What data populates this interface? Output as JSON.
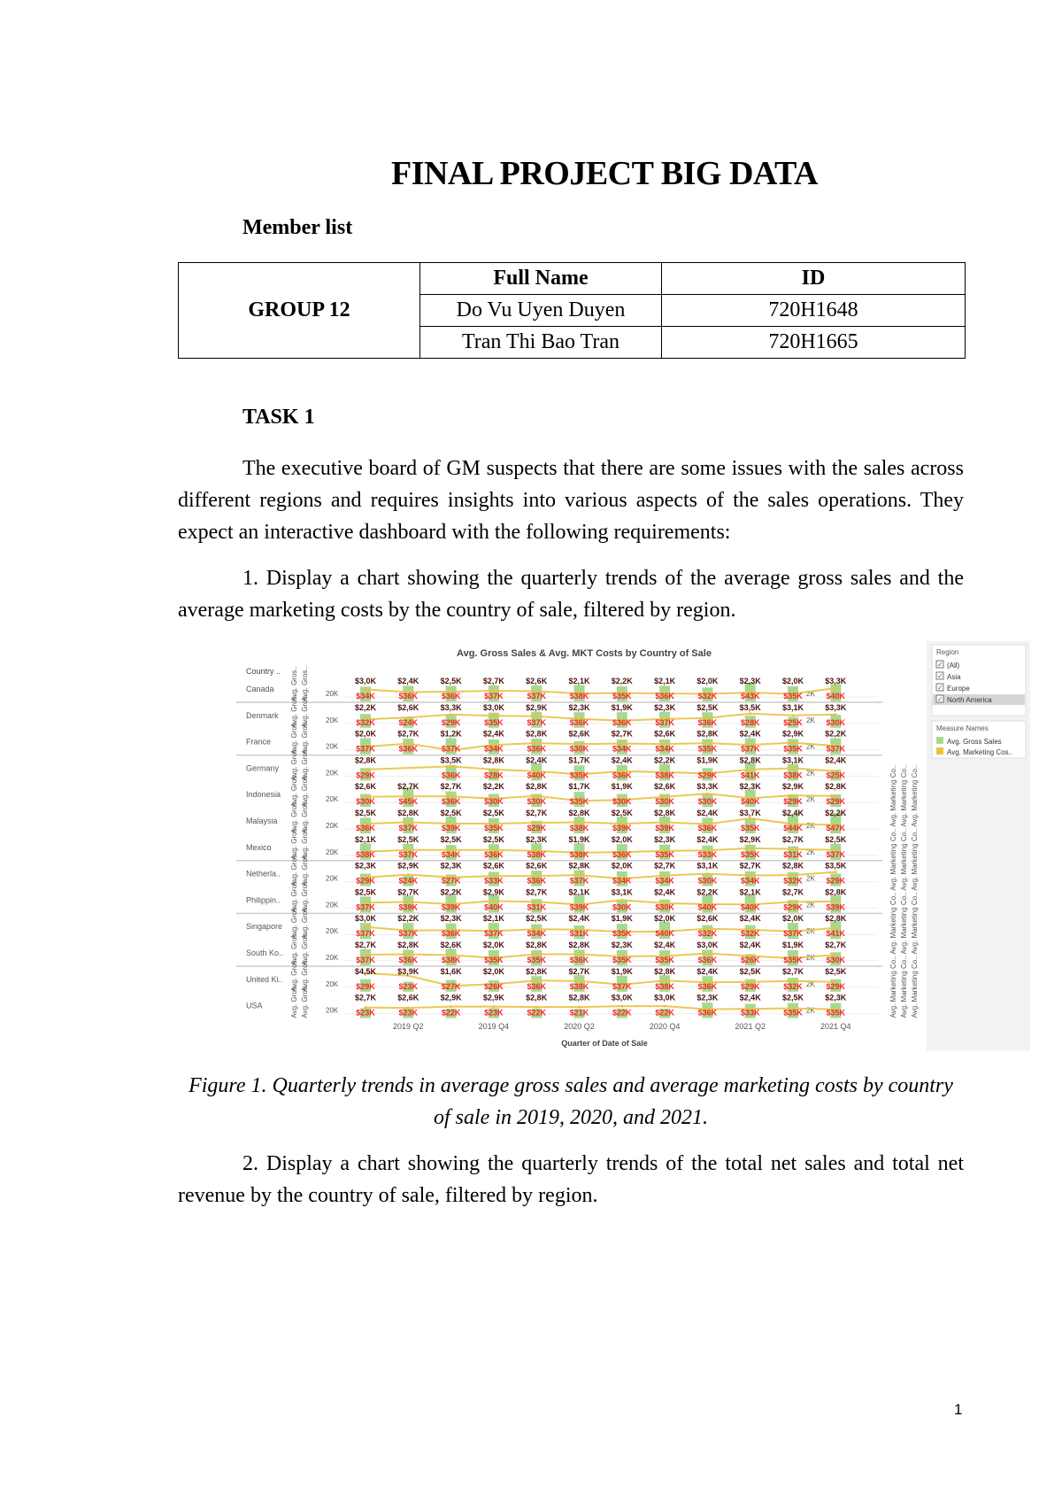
{
  "doc": {
    "title": "FINAL PROJECT BIG DATA",
    "member_list": "Member list",
    "table": {
      "group": "GROUP 12",
      "headers": [
        "Full Name",
        "ID"
      ],
      "rows": [
        [
          "Do Vu Uyen Duyen",
          "720H1648"
        ],
        [
          "Tran Thi Bao Tran",
          "720H1665"
        ]
      ]
    },
    "task": "TASK 1",
    "para1": "The executive board of GM suspects that there are some issues with the sales across different regions and requires insights into various aspects of the sales operations. They expect an interactive dashboard with the following requirements:",
    "para2": "1. Display a chart showing the quarterly trends of the average gross sales and the average marketing costs by the country of sale, filtered by region.",
    "caption": "Figure 1. Quarterly trends in average gross sales and average marketing costs by country of sale in 2019, 2020, and 2021.",
    "para3": "2. Display a chart showing the quarterly trends of the total net sales and total net revenue by the country of sale, filtered by region.",
    "page_number": "1"
  },
  "chart_data": {
    "type": "bar+line",
    "title": "Avg. Gross Sales & Avg. MKT Costs by Country of Sale",
    "row_header": "Country ..",
    "left_axis_title": "Avg. Gros..",
    "left_axis_tick": "20K",
    "right_axis_title": "Avg. Marketing Co..",
    "right_axis_tick": "2K",
    "xlabel": "Quarter of Date of Sale",
    "quarters": [
      "2019 Q1",
      "2019 Q2",
      "2019 Q3",
      "2019 Q4",
      "2020 Q1",
      "2020 Q2",
      "2020 Q3",
      "2020 Q4",
      "2021 Q1",
      "2021 Q2",
      "2021 Q3",
      "2021 Q4"
    ],
    "x_tick_labels": [
      "2019 Q2",
      "2019 Q4",
      "2020 Q2",
      "2020 Q4",
      "2021 Q2",
      "2021 Q4"
    ],
    "colors": {
      "gross": "#a6d98e",
      "marketing": "#e9c23f",
      "gross_label": "#ff1f1f",
      "marketing_label": "#4a1010"
    },
    "countries": [
      {
        "name": "Canada",
        "mkt_k": [
          3.0,
          2.4,
          2.5,
          2.7,
          2.6,
          2.1,
          2.2,
          2.1,
          2.0,
          2.3,
          2.0,
          3.3
        ],
        "gross_k": [
          34,
          36,
          36,
          37,
          37,
          38,
          35,
          36,
          32,
          43,
          35,
          40
        ]
      },
      {
        "name": "Denmark",
        "mkt_k": [
          2.2,
          2.6,
          3.3,
          3.0,
          2.9,
          2.3,
          1.9,
          2.3,
          2.5,
          3.5,
          3.1,
          3.3
        ],
        "gross_k": [
          32,
          24,
          29,
          35,
          37,
          36,
          36,
          37,
          36,
          28,
          25,
          30
        ]
      },
      {
        "name": "France",
        "mkt_k": [
          2.0,
          2.7,
          1.2,
          2.4,
          2.8,
          2.6,
          2.7,
          2.6,
          2.8,
          2.4,
          2.9,
          2.2
        ],
        "gross_k": [
          37,
          36,
          37,
          34,
          36,
          30,
          34,
          34,
          35,
          37,
          35,
          37
        ]
      },
      {
        "name": "Germany",
        "mkt_k": [
          2.8,
          null,
          3.5,
          2.8,
          2.4,
          1.7,
          2.4,
          2.2,
          1.9,
          2.8,
          3.1,
          2.4
        ],
        "gross_k": [
          29,
          null,
          36,
          28,
          40,
          35,
          36,
          38,
          29,
          41,
          38,
          25
        ]
      },
      {
        "name": "Indonesia",
        "mkt_k": [
          2.6,
          2.7,
          2.7,
          2.2,
          2.8,
          1.7,
          1.9,
          2.6,
          3.3,
          2.3,
          2.9,
          2.8
        ],
        "gross_k": [
          30,
          45,
          36,
          30,
          30,
          35,
          30,
          30,
          30,
          40,
          29,
          29
        ]
      },
      {
        "name": "Malaysia",
        "mkt_k": [
          2.5,
          2.8,
          2.5,
          2.5,
          2.7,
          2.8,
          2.5,
          2.8,
          2.4,
          3.7,
          2.4,
          2.2
        ],
        "gross_k": [
          36,
          37,
          39,
          35,
          29,
          38,
          39,
          39,
          36,
          35,
          44,
          47
        ]
      },
      {
        "name": "Mexico",
        "mkt_k": [
          2.1,
          2.5,
          2.5,
          2.5,
          2.3,
          1.9,
          2.0,
          2.3,
          2.4,
          2.9,
          2.7,
          2.5
        ],
        "gross_k": [
          38,
          37,
          34,
          36,
          38,
          38,
          36,
          35,
          33,
          35,
          31,
          37
        ]
      },
      {
        "name": "Netherla..",
        "mkt_k": [
          2.3,
          2.9,
          2.3,
          2.6,
          2.6,
          2.8,
          2.0,
          2.7,
          3.1,
          2.7,
          2.8,
          3.5
        ],
        "gross_k": [
          29,
          24,
          27,
          33,
          36,
          37,
          34,
          34,
          30,
          34,
          32,
          29
        ]
      },
      {
        "name": "Philippin..",
        "mkt_k": [
          2.5,
          2.7,
          2.2,
          2.9,
          2.7,
          2.1,
          3.1,
          2.4,
          2.2,
          2.1,
          2.7,
          2.8
        ],
        "gross_k": [
          37,
          39,
          39,
          40,
          31,
          39,
          30,
          30,
          40,
          40,
          29,
          39
        ]
      },
      {
        "name": "Singapore",
        "mkt_k": [
          3.0,
          2.2,
          2.3,
          2.1,
          2.5,
          2.4,
          1.9,
          2.0,
          2.6,
          2.4,
          2.0,
          2.8
        ],
        "gross_k": [
          37,
          37,
          36,
          37,
          34,
          31,
          35,
          40,
          32,
          32,
          37,
          41
        ]
      },
      {
        "name": "South Ko..",
        "mkt_k": [
          2.7,
          2.8,
          2.6,
          2.0,
          2.8,
          2.8,
          2.3,
          2.4,
          3.0,
          2.4,
          1.9,
          2.7
        ],
        "gross_k": [
          37,
          36,
          38,
          35,
          35,
          36,
          35,
          35,
          36,
          26,
          35,
          30
        ]
      },
      {
        "name": "United Ki..",
        "mkt_k": [
          4.5,
          3.9,
          1.6,
          2.0,
          2.8,
          2.7,
          1.9,
          2.8,
          2.4,
          2.5,
          2.7,
          2.5
        ],
        "gross_k": [
          29,
          23,
          27,
          26,
          36,
          38,
          37,
          38,
          36,
          29,
          32,
          29
        ]
      },
      {
        "name": "USA",
        "mkt_k": [
          2.7,
          2.6,
          2.9,
          2.9,
          2.8,
          2.8,
          3.0,
          3.0,
          2.3,
          2.4,
          2.5,
          2.3
        ],
        "gross_k": [
          23,
          23,
          22,
          23,
          22,
          21,
          22,
          22,
          36,
          33,
          35,
          35
        ]
      }
    ],
    "filter": {
      "title": "Region",
      "options": [
        {
          "label": "(All)",
          "checked": true
        },
        {
          "label": "Asia",
          "checked": true
        },
        {
          "label": "Europe",
          "checked": true
        },
        {
          "label": "North America",
          "checked": true,
          "highlighted": true
        }
      ]
    },
    "legend": {
      "title": "Measure Names",
      "items": [
        "Avg. Gross Sales",
        "Avg. Marketing Cos.."
      ]
    }
  }
}
